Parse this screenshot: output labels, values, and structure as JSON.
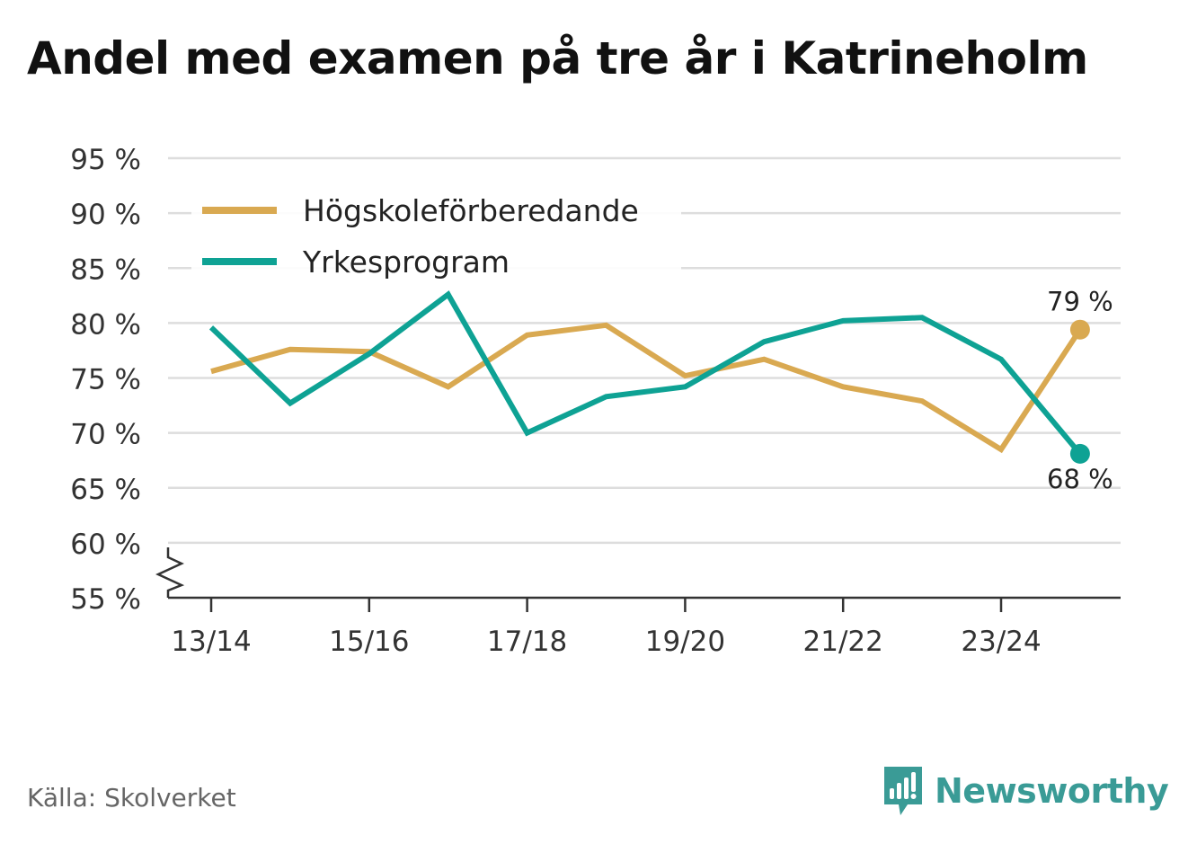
{
  "title": "Andel med examen på tre år i Katrineholm",
  "source": "Källa: Skolverket",
  "brand": {
    "name": "Newsworthy",
    "icon": "newsworthy-logo-icon",
    "color": "#3a9b96"
  },
  "chart_data": {
    "type": "line",
    "title": "Andel med examen på tre år i Katrineholm",
    "xlabel": "",
    "ylabel": "",
    "ylim": [
      55,
      95
    ],
    "y_ticks": [
      55,
      60,
      65,
      70,
      75,
      80,
      85,
      90,
      95
    ],
    "y_tick_suffix": " %",
    "y_axis_break": true,
    "x_tick_labels": [
      "13/14",
      "15/16",
      "17/18",
      "19/20",
      "21/22",
      "23/24"
    ],
    "x_tick_indices": [
      0,
      2,
      4,
      6,
      8,
      10
    ],
    "grid": true,
    "legend_position": "top-left",
    "series": [
      {
        "name": "Högskoleförberedande",
        "color": "#d9a951",
        "values": [
          75.6,
          77.6,
          77.4,
          74.2,
          78.9,
          79.8,
          75.2,
          76.7,
          74.2,
          72.9,
          68.5,
          79.4
        ],
        "end_label": "79 %",
        "end_label_position": "above"
      },
      {
        "name": "Yrkesprogram",
        "color": "#0ea294",
        "values": [
          79.6,
          72.7,
          77.2,
          82.6,
          70.0,
          73.3,
          74.2,
          78.3,
          80.2,
          80.5,
          76.7,
          68.1
        ],
        "end_label": "68 %",
        "end_label_position": "below"
      }
    ]
  }
}
